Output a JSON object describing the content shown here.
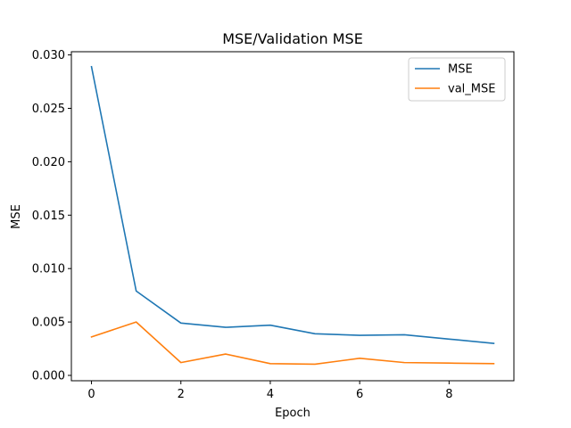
{
  "chart_data": {
    "type": "line",
    "title": "MSE/Validation MSE",
    "xlabel": "Epoch",
    "ylabel": "MSE",
    "x": [
      0,
      1,
      2,
      3,
      4,
      5,
      6,
      7,
      8,
      9
    ],
    "xlim": [
      -0.45,
      9.45
    ],
    "ylim": [
      -0.0005,
      0.0303
    ],
    "xticks": [
      0,
      2,
      4,
      6,
      8
    ],
    "xtick_labels": [
      "0",
      "2",
      "4",
      "6",
      "8"
    ],
    "yticks": [
      0.0,
      0.005,
      0.01,
      0.015,
      0.02,
      0.025,
      0.03
    ],
    "ytick_labels": [
      "0.000",
      "0.005",
      "0.010",
      "0.015",
      "0.020",
      "0.025",
      "0.030"
    ],
    "grid": false,
    "legend_position": "upper right",
    "series": [
      {
        "name": "MSE",
        "color": "#1f77b4",
        "values": [
          0.0289,
          0.0079,
          0.0049,
          0.0045,
          0.0047,
          0.0039,
          0.00375,
          0.0038,
          0.0034,
          0.003
        ]
      },
      {
        "name": "val_MSE",
        "color": "#ff7f0e",
        "values": [
          0.0036,
          0.005,
          0.0012,
          0.002,
          0.0011,
          0.00105,
          0.0016,
          0.0012,
          0.00115,
          0.0011
        ]
      }
    ]
  }
}
